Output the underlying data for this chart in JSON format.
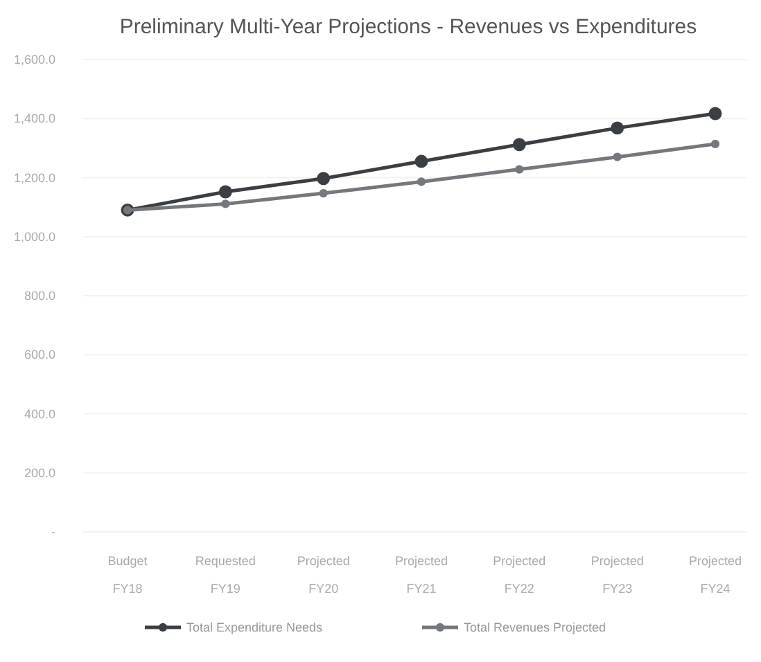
{
  "chart_data": {
    "type": "line",
    "title": "Preliminary Multi-Year Projections - Revenues vs Expenditures",
    "categories": [
      "Budget\nFY18",
      "Requested\nFY19",
      "Projected\nFY20",
      "Projected\nFY21",
      "Projected\nFY22",
      "Projected\nFY23",
      "Projected\nFY24"
    ],
    "series": [
      {
        "name": "Total Expenditure Needs",
        "color": "#3b3f43",
        "values": [
          1090,
          1152,
          1197,
          1255,
          1312,
          1368,
          1417
        ]
      },
      {
        "name": "Total Revenues Projected",
        "color": "#74787c",
        "values": [
          1090,
          1111,
          1147,
          1186,
          1228,
          1270,
          1314
        ]
      }
    ],
    "ylim": [
      0,
      1600
    ],
    "yticks": [
      {
        "value": 0,
        "label": "-"
      },
      {
        "value": 200,
        "label": "200.0"
      },
      {
        "value": 400,
        "label": "400.0"
      },
      {
        "value": 600,
        "label": "600.0"
      },
      {
        "value": 800,
        "label": "800.0"
      },
      {
        "value": 1000,
        "label": "1,000.0"
      },
      {
        "value": 1200,
        "label": "1,200.0"
      },
      {
        "value": 1400,
        "label": "1,400.0"
      },
      {
        "value": 1600,
        "label": "1,600.0"
      }
    ],
    "grid": "y",
    "legend": "bottom",
    "marker": "circle"
  }
}
